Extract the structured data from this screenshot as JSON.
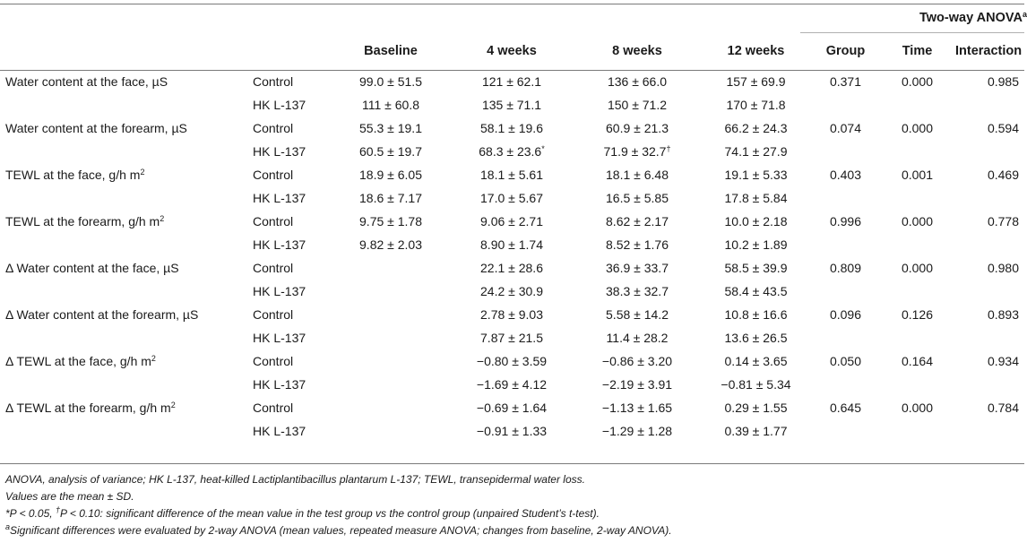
{
  "header": {
    "anova_group_title": "Two-way ANOVA",
    "anova_group_sup": "a",
    "columns": [
      "",
      "",
      "Baseline",
      "4 weeks",
      "8 weeks",
      "12 weeks",
      "Group",
      "Time",
      "Interaction"
    ]
  },
  "rows": [
    {
      "label": "Water content at the face, µS",
      "label_sup": "",
      "group": "Control",
      "baseline": "99.0 ± 51.5",
      "w4": "121 ± 62.1",
      "w4_sup": "",
      "w8": "136 ± 66.0",
      "w8_sup": "",
      "w12": "157 ± 69.9",
      "p_group": "0.371",
      "p_time": "0.000",
      "p_interaction": "0.985"
    },
    {
      "label": "",
      "label_sup": "",
      "group": "HK L-137",
      "baseline": "111 ± 60.8",
      "w4": "135 ± 71.1",
      "w4_sup": "",
      "w8": "150 ± 71.2",
      "w8_sup": "",
      "w12": "170 ± 71.8",
      "p_group": "",
      "p_time": "",
      "p_interaction": ""
    },
    {
      "label": "Water content at the forearm, µS",
      "label_sup": "",
      "group": "Control",
      "baseline": "55.3 ± 19.1",
      "w4": "58.1 ± 19.6",
      "w4_sup": "",
      "w8": "60.9 ± 21.3",
      "w8_sup": "",
      "w12": "66.2 ± 24.3",
      "p_group": "0.074",
      "p_time": "0.000",
      "p_interaction": "0.594"
    },
    {
      "label": "",
      "label_sup": "",
      "group": "HK L-137",
      "baseline": "60.5 ± 19.7",
      "w4": "68.3 ± 23.6",
      "w4_sup": "*",
      "w8": "71.9 ± 32.7",
      "w8_sup": "†",
      "w12": "74.1 ± 27.9",
      "p_group": "",
      "p_time": "",
      "p_interaction": ""
    },
    {
      "label": "TEWL at the face, g/h m",
      "label_sup": "2",
      "group": "Control",
      "baseline": "18.9 ± 6.05",
      "w4": "18.1 ± 5.61",
      "w4_sup": "",
      "w8": "18.1 ± 6.48",
      "w8_sup": "",
      "w12": "19.1 ± 5.33",
      "p_group": "0.403",
      "p_time": "0.001",
      "p_interaction": "0.469"
    },
    {
      "label": "",
      "label_sup": "",
      "group": "HK L-137",
      "baseline": "18.6 ± 7.17",
      "w4": "17.0 ± 5.67",
      "w4_sup": "",
      "w8": "16.5 ± 5.85",
      "w8_sup": "",
      "w12": "17.8 ± 5.84",
      "p_group": "",
      "p_time": "",
      "p_interaction": ""
    },
    {
      "label": "TEWL at the forearm, g/h m",
      "label_sup": "2",
      "group": "Control",
      "baseline": "9.75 ± 1.78",
      "w4": "9.06 ± 2.71",
      "w4_sup": "",
      "w8": "8.62 ± 2.17",
      "w8_sup": "",
      "w12": "10.0 ± 2.18",
      "p_group": "0.996",
      "p_time": "0.000",
      "p_interaction": "0.778"
    },
    {
      "label": "",
      "label_sup": "",
      "group": "HK L-137",
      "baseline": "9.82 ± 2.03",
      "w4": "8.90 ± 1.74",
      "w4_sup": "",
      "w8": "8.52 ± 1.76",
      "w8_sup": "",
      "w12": "10.2 ± 1.89",
      "p_group": "",
      "p_time": "",
      "p_interaction": ""
    },
    {
      "label": "Δ Water content at the face, µS",
      "label_sup": "",
      "group": "Control",
      "baseline": "",
      "w4": "22.1 ± 28.6",
      "w4_sup": "",
      "w8": "36.9 ± 33.7",
      "w8_sup": "",
      "w12": "58.5 ± 39.9",
      "p_group": "0.809",
      "p_time": "0.000",
      "p_interaction": "0.980"
    },
    {
      "label": "",
      "label_sup": "",
      "group": "HK L-137",
      "baseline": "",
      "w4": "24.2 ± 30.9",
      "w4_sup": "",
      "w8": "38.3 ± 32.7",
      "w8_sup": "",
      "w12": "58.4 ± 43.5",
      "p_group": "",
      "p_time": "",
      "p_interaction": ""
    },
    {
      "label": "Δ Water content at the forearm, µS",
      "label_sup": "",
      "group": "Control",
      "baseline": "",
      "w4": "2.78 ± 9.03",
      "w4_sup": "",
      "w8": "5.58 ± 14.2",
      "w8_sup": "",
      "w12": "10.8 ± 16.6",
      "p_group": "0.096",
      "p_time": "0.126",
      "p_interaction": "0.893"
    },
    {
      "label": "",
      "label_sup": "",
      "group": "HK L-137",
      "baseline": "",
      "w4": "7.87 ± 21.5",
      "w4_sup": "",
      "w8": "11.4 ± 28.2",
      "w8_sup": "",
      "w12": "13.6 ± 26.5",
      "p_group": "",
      "p_time": "",
      "p_interaction": ""
    },
    {
      "label": "Δ TEWL at the face, g/h m",
      "label_sup": "2",
      "group": "Control",
      "baseline": "",
      "w4": "−0.80 ± 3.59",
      "w4_sup": "",
      "w8": "−0.86 ± 3.20",
      "w8_sup": "",
      "w12": "0.14 ± 3.65",
      "p_group": "0.050",
      "p_time": "0.164",
      "p_interaction": "0.934"
    },
    {
      "label": "",
      "label_sup": "",
      "group": "HK L-137",
      "baseline": "",
      "w4": "−1.69 ± 4.12",
      "w4_sup": "",
      "w8": "−2.19 ± 3.91",
      "w8_sup": "",
      "w12": "−0.81 ± 5.34",
      "p_group": "",
      "p_time": "",
      "p_interaction": ""
    },
    {
      "label": "Δ TEWL at the forearm, g/h m",
      "label_sup": "2",
      "group": "Control",
      "baseline": "",
      "w4": "−0.69 ± 1.64",
      "w4_sup": "",
      "w8": "−1.13 ± 1.65",
      "w8_sup": "",
      "w12": "0.29 ± 1.55",
      "p_group": "0.645",
      "p_time": "0.000",
      "p_interaction": "0.784"
    },
    {
      "label": "",
      "label_sup": "",
      "group": "HK L-137",
      "baseline": "",
      "w4": "−0.91 ± 1.33",
      "w4_sup": "",
      "w8": "−1.29 ± 1.28",
      "w8_sup": "",
      "w12": "0.39 ± 1.77",
      "p_group": "",
      "p_time": "",
      "p_interaction": ""
    }
  ],
  "footnotes": {
    "abbreviations": "ANOVA, analysis of variance; HK L-137, heat-killed Lactiplantibacillus plantarum L-137; TEWL, transepidermal water loss.",
    "values": "Values are the mean ± SD.",
    "sig_star_sym": "*",
    "sig_star_text": "P < 0.05, ",
    "sig_dagger_sym": "†",
    "sig_dagger_text": "P < 0.10: significant difference of the mean value in the test group vs the control group (unpaired Student’s t-test).",
    "anova_sym": "a",
    "anova_text": "Significant differences were evaluated by 2-way ANOVA (mean values, repeated measure ANOVA; changes from baseline, 2-way ANOVA)."
  }
}
